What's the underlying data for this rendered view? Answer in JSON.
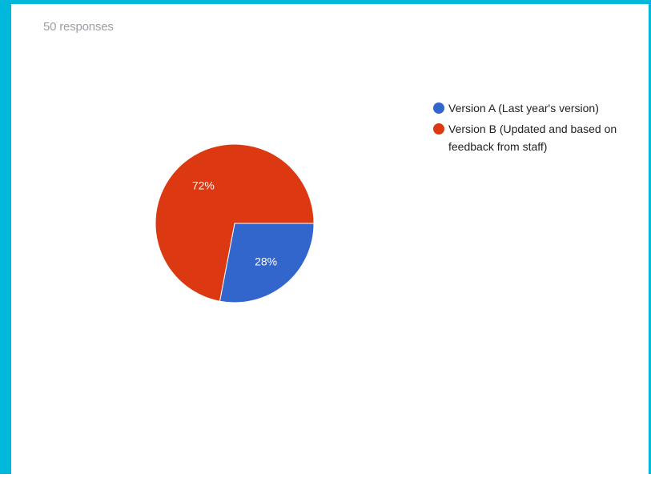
{
  "header": {
    "responses_label": "50 responses"
  },
  "colors": {
    "frame": "#00b8db",
    "version_a": "#3366cc",
    "version_b": "#dc3912"
  },
  "chart_data": {
    "type": "pie",
    "categories": [
      "Version A (Last year's version)",
      "Version B (Updated and based on feedback from staff)"
    ],
    "values": [
      28,
      72
    ],
    "data_labels": [
      "28%",
      "72%"
    ],
    "legend_position": "right",
    "legend": [
      {
        "label": "Version A (Last year's version)",
        "color": "#3366cc"
      },
      {
        "label": "Version B (Updated and based on feedback from staff)",
        "color": "#dc3912"
      }
    ]
  }
}
